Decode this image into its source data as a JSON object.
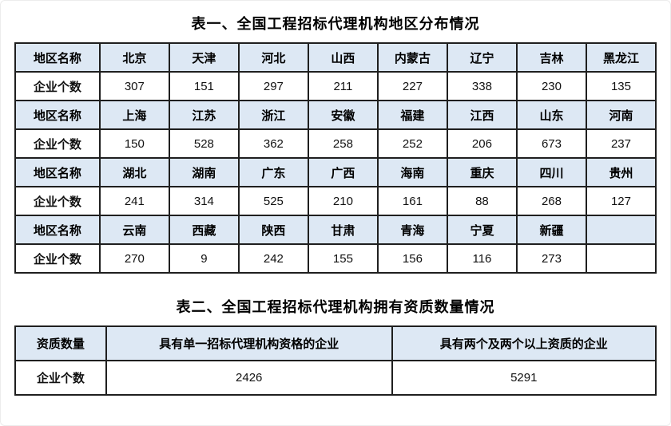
{
  "colors": {
    "header_bg": "#dde8f4",
    "border": "#1f1f1f",
    "page_bg": "#ffffff"
  },
  "table1": {
    "title": "表一、全国工程招标代理机构地区分布情况",
    "region_row_label": "地区名称",
    "count_row_label": "企业个数",
    "groups": [
      {
        "regions": [
          "北京",
          "天津",
          "河北",
          "山西",
          "内蒙古",
          "辽宁",
          "吉林",
          "黑龙江"
        ],
        "counts": [
          "307",
          "151",
          "297",
          "211",
          "227",
          "338",
          "230",
          "135"
        ]
      },
      {
        "regions": [
          "上海",
          "江苏",
          "浙江",
          "安徽",
          "福建",
          "江西",
          "山东",
          "河南"
        ],
        "counts": [
          "150",
          "528",
          "362",
          "258",
          "252",
          "206",
          "673",
          "237"
        ]
      },
      {
        "regions": [
          "湖北",
          "湖南",
          "广东",
          "广西",
          "海南",
          "重庆",
          "四川",
          "贵州"
        ],
        "counts": [
          "241",
          "314",
          "525",
          "210",
          "161",
          "88",
          "268",
          "127"
        ]
      },
      {
        "regions": [
          "云南",
          "西藏",
          "陕西",
          "甘肃",
          "青海",
          "宁夏",
          "新疆",
          ""
        ],
        "counts": [
          "270",
          "9",
          "242",
          "155",
          "156",
          "116",
          "273",
          ""
        ]
      }
    ]
  },
  "table2": {
    "title": "表二、全国工程招标代理机构拥有资质数量情况",
    "header_label": "资质数量",
    "row_label": "企业个数",
    "columns": [
      "具有单一招标代理机构资格的企业",
      "具有两个及两个以上资质的企业"
    ],
    "values": [
      "2426",
      "5291"
    ]
  }
}
